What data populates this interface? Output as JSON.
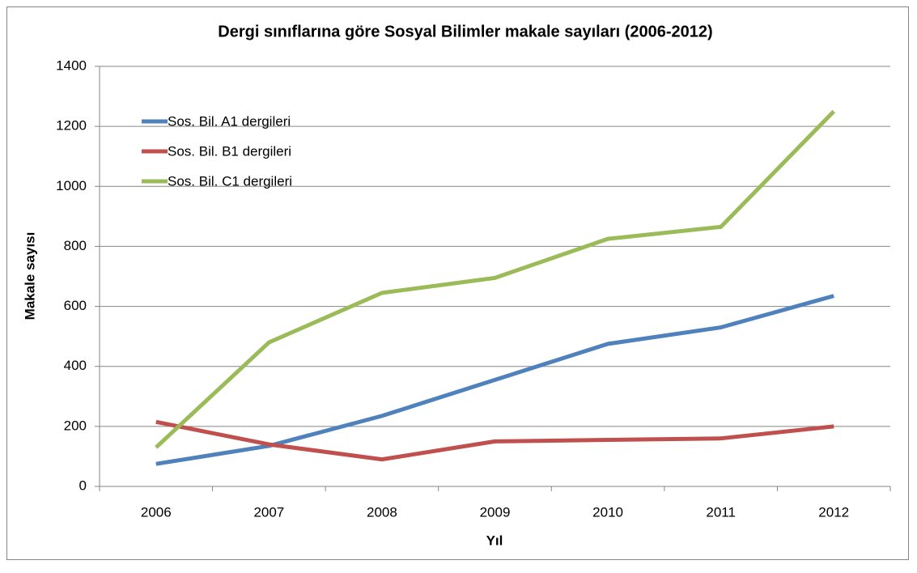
{
  "chart_data": {
    "type": "line",
    "title": "Dergi sınıflarına göre Sosyal Bilimler makale sayıları (2006-2012)",
    "x_label": "Yıl",
    "y_label": "Makale sayısı",
    "categories": [
      "2006",
      "2007",
      "2008",
      "2009",
      "2010",
      "2011",
      "2012"
    ],
    "series": [
      {
        "name": "Sos. Bil. A1 dergileri",
        "color": "#4f81bd",
        "values": [
          75,
          135,
          235,
          355,
          475,
          530,
          635
        ]
      },
      {
        "name": "Sos. Bil. B1 dergileri",
        "color": "#c0504d",
        "values": [
          215,
          140,
          90,
          150,
          155,
          160,
          200
        ]
      },
      {
        "name": "Sos. Bil. C1 dergileri",
        "color": "#9bbb59",
        "values": [
          130,
          480,
          645,
          695,
          825,
          865,
          1250
        ]
      }
    ],
    "ylim": [
      0,
      1400
    ],
    "yticks": [
      0,
      200,
      400,
      600,
      800,
      1000,
      1200,
      1400
    ],
    "grid": true,
    "legend": "upper left"
  }
}
